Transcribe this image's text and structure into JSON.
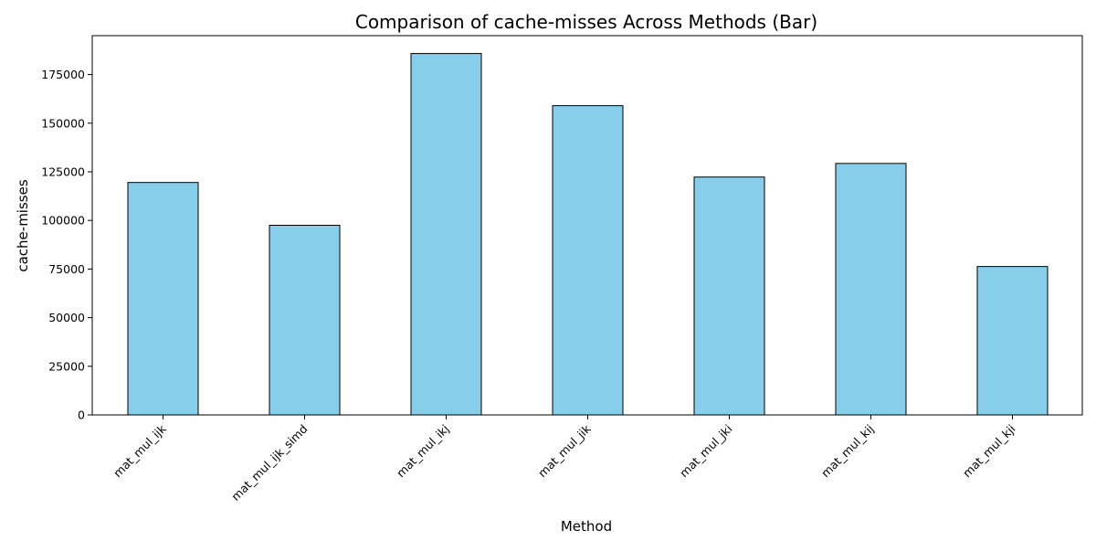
{
  "chart_data": {
    "type": "bar",
    "title": "Comparison of cache-misses Across Methods (Bar)",
    "xlabel": "Method",
    "ylabel": "cache-misses",
    "categories": [
      "mat_mul_ijk",
      "mat_mul_ijk_simd",
      "mat_mul_ikj",
      "mat_mul_jik",
      "mat_mul_jki",
      "mat_mul_kij",
      "mat_mul_kji"
    ],
    "values": [
      119500,
      97500,
      185800,
      159000,
      122300,
      129300,
      76300
    ],
    "ylim": [
      0,
      195000
    ],
    "yticks": [
      0,
      25000,
      50000,
      75000,
      100000,
      125000,
      150000,
      175000
    ],
    "grid": false,
    "legend": "none",
    "bar_color": "#87CEEB",
    "edge_color": "#000000"
  }
}
